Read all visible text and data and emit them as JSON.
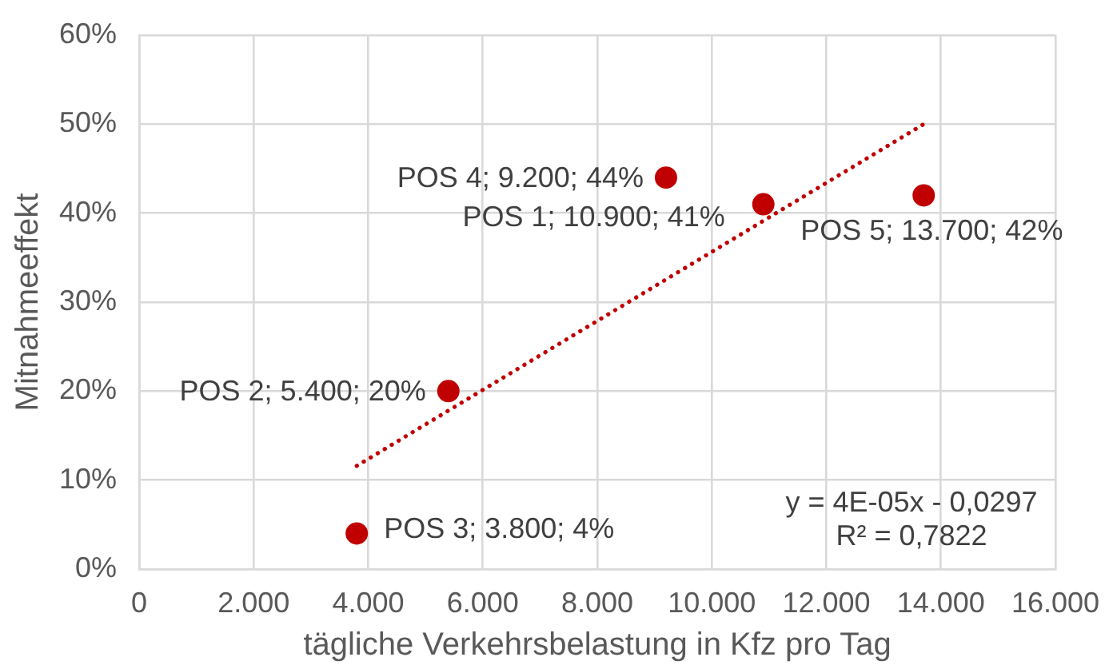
{
  "chart_data": {
    "type": "scatter",
    "xlabel": "tägliche Verkehrsbelastung in Kfz pro Tag",
    "ylabel": "Mitnahmeeffekt",
    "xlim": [
      0,
      16000
    ],
    "xticks": [
      0,
      {
        "value": 2000,
        "label": "2.000"
      },
      {
        "value": 4000,
        "label": "4.000"
      },
      {
        "value": 6000,
        "label": "6.000"
      },
      {
        "value": 8000,
        "label": "8.000"
      },
      {
        "value": 10000,
        "label": "10.000"
      },
      {
        "value": 12000,
        "label": "12.000"
      },
      {
        "value": 14000,
        "label": "14.000"
      },
      {
        "value": 16000,
        "label": "16.000"
      }
    ],
    "ylim": [
      0,
      60
    ],
    "yticks": [
      {
        "value": 0,
        "label": "0%"
      },
      {
        "value": 10,
        "label": "10%"
      },
      {
        "value": 20,
        "label": "20%"
      },
      {
        "value": 30,
        "label": "30%"
      },
      {
        "value": 40,
        "label": "40%"
      },
      {
        "value": 50,
        "label": "50%"
      },
      {
        "value": 60,
        "label": "60%"
      }
    ],
    "grid": true,
    "marker": "circle",
    "series": [
      {
        "color": "#c00000",
        "x": [
          10900,
          5400,
          3800,
          9200,
          13700
        ],
        "values": [
          41,
          20,
          4,
          44,
          42
        ],
        "value_labels": [
          "POS 1; 10.900; 41%",
          "POS 2; 5.400; 20%",
          "POS 3; 3.800; 4%",
          "POS 4; 9.200; 44%",
          "POS 5; 13.700; 42%"
        ]
      },
      {
        "type": "line",
        "color": "#c00000",
        "line_style": "dotted",
        "marker": "none",
        "x": [
          3800,
          13700
        ],
        "values": [
          11.6,
          50
        ]
      }
    ],
    "annotations": [
      "y = 4E-05x - 0,0297",
      "R² = 0,7822"
    ]
  }
}
